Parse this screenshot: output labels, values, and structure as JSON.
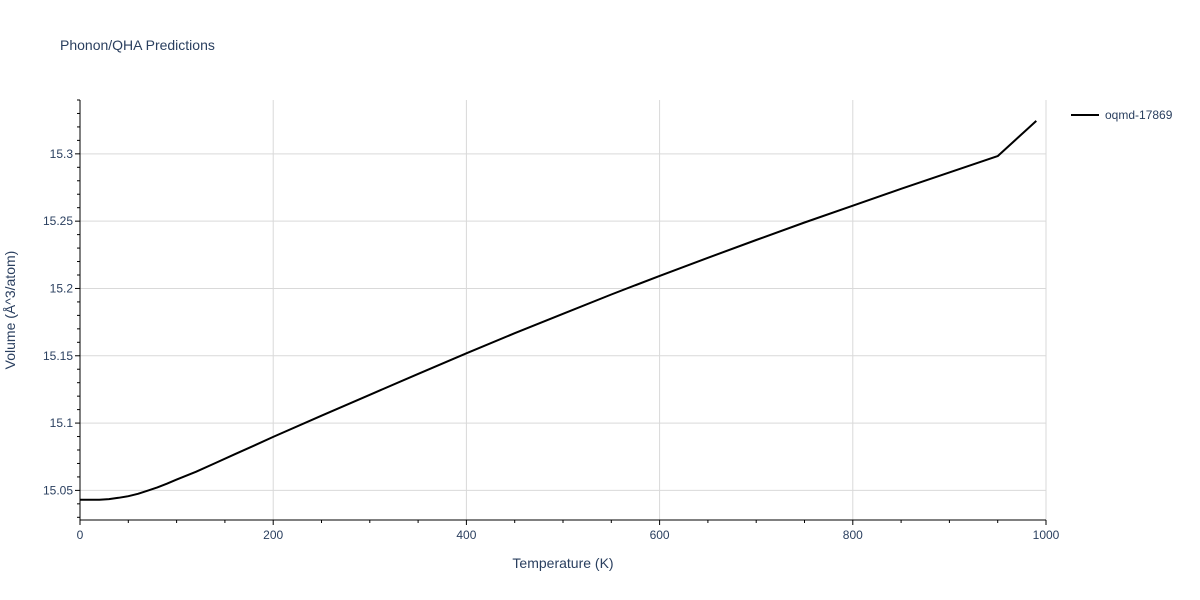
{
  "chart_data": {
    "type": "line",
    "title": "Phonon/QHA Predictions",
    "xlabel": "Temperature (K)",
    "ylabel": "Volume (Å^3/atom)",
    "xlim": [
      0,
      1000
    ],
    "ylim": [
      15.028,
      15.34
    ],
    "xticks": [
      0,
      200,
      400,
      600,
      800,
      1000
    ],
    "xtick_labels": [
      "0",
      "200",
      "400",
      "600",
      "800",
      "1000"
    ],
    "yticks": [
      15.05,
      15.1,
      15.15,
      15.2,
      15.25,
      15.3
    ],
    "ytick_labels": [
      "15.05",
      "15.1",
      "15.15",
      "15.2",
      "15.25",
      "15.3"
    ],
    "grid": true,
    "legend_position": "top-right",
    "series": [
      {
        "name": "oqmd-17869",
        "color": "#000000",
        "x": [
          0,
          10,
          20,
          30,
          40,
          50,
          60,
          70,
          80,
          90,
          100,
          120,
          140,
          160,
          180,
          200,
          250,
          300,
          350,
          400,
          450,
          500,
          550,
          600,
          650,
          700,
          750,
          800,
          850,
          900,
          950,
          990
        ],
        "y": [
          15.043,
          15.043,
          15.043,
          15.0435,
          15.0445,
          15.0457,
          15.0475,
          15.0498,
          15.0522,
          15.055,
          15.058,
          15.0638,
          15.0703,
          15.0768,
          15.0832,
          15.0897,
          15.1055,
          15.121,
          15.1365,
          15.1518,
          15.1668,
          15.1812,
          15.1955,
          15.2093,
          15.2228,
          15.236,
          15.249,
          15.2615,
          15.274,
          15.2862,
          15.2983,
          15.3245
        ]
      }
    ]
  }
}
